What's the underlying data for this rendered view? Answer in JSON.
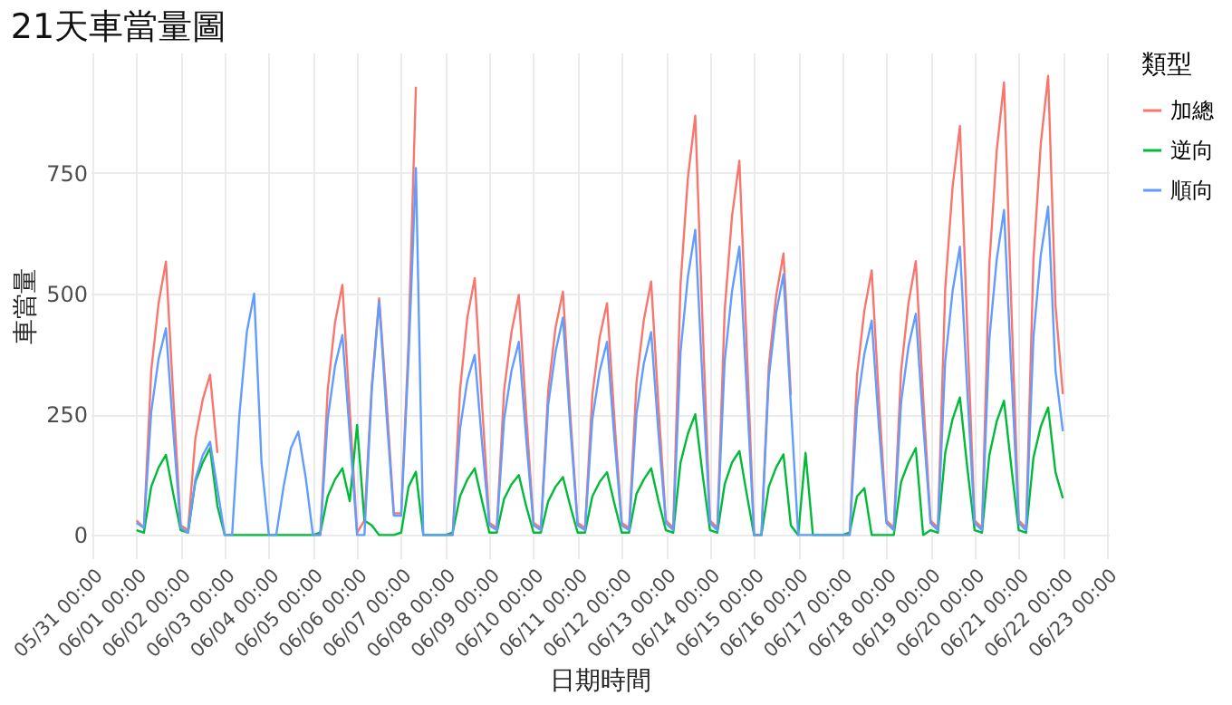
{
  "chart_data": {
    "type": "line",
    "title": "21天車當量圖",
    "xlabel": "日期時間",
    "ylabel": "車當量",
    "legend_title": "類型",
    "legend": "right",
    "grid": true,
    "x": [
      "--06-01T00:00",
      "--06-01T04:00",
      "--06-01T08:00",
      "--06-01T12:00",
      "--06-01T16:00",
      "--06-01T20:00",
      "--06-02T00:00",
      "--06-02T04:00",
      "--06-02T08:00",
      "--06-02T12:00",
      "--06-02T16:00",
      "--06-02T20:00",
      "--06-03T00:00",
      "--06-03T04:00",
      "--06-03T08:00",
      "--06-03T12:00",
      "--06-03T16:00",
      "--06-03T20:00",
      "--06-04T00:00",
      "--06-04T04:00",
      "--06-04T08:00",
      "--06-04T12:00",
      "--06-04T16:00",
      "--06-04T20:00",
      "--06-05T00:00",
      "--06-05T04:00",
      "--06-05T08:00",
      "--06-05T12:00",
      "--06-05T16:00",
      "--06-05T20:00",
      "--06-06T00:00",
      "--06-06T04:00",
      "--06-06T08:00",
      "--06-06T12:00",
      "--06-06T16:00",
      "--06-06T20:00",
      "--06-07T00:00",
      "--06-07T04:00",
      "--06-07T08:00",
      "--06-07T12:00",
      "--06-07T16:00",
      "--06-07T20:00",
      "--06-08T00:00",
      "--06-08T04:00",
      "--06-08T08:00",
      "--06-08T12:00",
      "--06-08T16:00",
      "--06-08T20:00",
      "--06-09T00:00",
      "--06-09T04:00",
      "--06-09T08:00",
      "--06-09T12:00",
      "--06-09T16:00",
      "--06-09T20:00",
      "--06-10T00:00",
      "--06-10T04:00",
      "--06-10T08:00",
      "--06-10T12:00",
      "--06-10T16:00",
      "--06-10T20:00",
      "--06-11T00:00",
      "--06-11T04:00",
      "--06-11T08:00",
      "--06-11T12:00",
      "--06-11T16:00",
      "--06-11T20:00",
      "--06-12T00:00",
      "--06-12T04:00",
      "--06-12T08:00",
      "--06-12T12:00",
      "--06-12T16:00",
      "--06-12T20:00",
      "--06-13T00:00",
      "--06-13T04:00",
      "--06-13T08:00",
      "--06-13T12:00",
      "--06-13T16:00",
      "--06-13T20:00",
      "--06-14T00:00",
      "--06-14T04:00",
      "--06-14T08:00",
      "--06-14T12:00",
      "--06-14T16:00",
      "--06-14T20:00",
      "--06-15T00:00",
      "--06-15T04:00",
      "--06-15T08:00",
      "--06-15T12:00",
      "--06-15T16:00",
      "--06-15T20:00",
      "--06-16T00:00",
      "--06-16T04:00",
      "--06-16T08:00",
      "--06-16T12:00",
      "--06-16T16:00",
      "--06-16T20:00",
      "--06-17T00:00",
      "--06-17T04:00",
      "--06-17T08:00",
      "--06-17T12:00",
      "--06-17T16:00",
      "--06-17T20:00",
      "--06-18T00:00",
      "--06-18T04:00",
      "--06-18T08:00",
      "--06-18T12:00",
      "--06-18T16:00",
      "--06-18T20:00",
      "--06-19T00:00",
      "--06-19T04:00",
      "--06-19T08:00",
      "--06-19T12:00",
      "--06-19T16:00",
      "--06-19T20:00",
      "--06-20T00:00",
      "--06-20T04:00",
      "--06-20T08:00",
      "--06-20T12:00",
      "--06-20T16:00",
      "--06-20T20:00",
      "--06-21T00:00",
      "--06-21T04:00",
      "--06-21T08:00",
      "--06-21T12:00",
      "--06-21T16:00",
      "--06-21T20:00",
      "--06-22T00:00"
    ],
    "series": [
      {
        "name": "加總",
        "color": "#f8766d",
        "values": [
          30,
          15,
          340,
          480,
          566,
          285,
          20,
          10,
          200,
          280,
          332,
          170,
          null,
          null,
          null,
          null,
          null,
          null,
          null,
          null,
          null,
          null,
          null,
          null,
          0,
          0,
          300,
          440,
          518,
          260,
          5,
          30,
          310,
          490,
          280,
          45,
          45,
          400,
          928,
          null,
          null,
          null,
          0,
          0,
          300,
          450,
          532,
          270,
          25,
          15,
          300,
          420,
          497,
          250,
          25,
          15,
          300,
          430,
          504,
          250,
          25,
          15,
          290,
          410,
          480,
          240,
          25,
          15,
          315,
          445,
          525,
          265,
          30,
          15,
          520,
          740,
          868,
          435,
          30,
          15,
          465,
          660,
          775,
          390,
          0,
          0,
          350,
          495,
          583,
          290,
          null,
          null,
          null,
          null,
          null,
          null,
          0,
          0,
          330,
          465,
          548,
          275,
          30,
          15,
          340,
          480,
          567,
          285,
          30,
          15,
          510,
          720,
          847,
          425,
          30,
          15,
          560,
          795,
          937,
          470,
          30,
          15,
          570,
          810,
          951,
          475,
          292
        ]
      },
      {
        "name": "逆向",
        "color": "#00ba38",
        "values": [
          10,
          5,
          100,
          140,
          166,
          85,
          10,
          5,
          110,
          150,
          180,
          60,
          0,
          0,
          0,
          0,
          0,
          0,
          0,
          0,
          0,
          0,
          0,
          0,
          0,
          5,
          80,
          115,
          138,
          70,
          228,
          30,
          20,
          0,
          0,
          0,
          5,
          100,
          131,
          0,
          0,
          0,
          0,
          5,
          80,
          115,
          138,
          70,
          5,
          5,
          75,
          105,
          124,
          60,
          5,
          5,
          70,
          100,
          120,
          60,
          5,
          5,
          80,
          110,
          130,
          65,
          5,
          5,
          85,
          115,
          138,
          70,
          10,
          5,
          150,
          210,
          250,
          125,
          10,
          5,
          105,
          150,
          174,
          85,
          0,
          0,
          100,
          140,
          167,
          20,
          0,
          170,
          0,
          0,
          0,
          0,
          0,
          5,
          80,
          97,
          0,
          0,
          0,
          0,
          110,
          150,
          180,
          0,
          10,
          5,
          170,
          240,
          285,
          140,
          10,
          5,
          165,
          235,
          278,
          140,
          10,
          5,
          160,
          225,
          264,
          130,
          76
        ]
      },
      {
        "name": "順向",
        "color": "#619cff",
        "values": [
          25,
          15,
          255,
          365,
          428,
          215,
          15,
          5,
          115,
          165,
          193,
          95,
          0,
          0,
          250,
          420,
          500,
          150,
          0,
          0,
          100,
          180,
          214,
          120,
          0,
          0,
          240,
          350,
          414,
          210,
          0,
          0,
          300,
          484,
          250,
          40,
          40,
          366,
          760,
          0,
          0,
          0,
          0,
          0,
          220,
          320,
          373,
          190,
          20,
          10,
          240,
          340,
          400,
          200,
          20,
          10,
          270,
          380,
          450,
          225,
          20,
          10,
          240,
          340,
          400,
          200,
          20,
          10,
          250,
          355,
          420,
          210,
          25,
          10,
          380,
          535,
          632,
          315,
          25,
          10,
          360,
          505,
          597,
          300,
          0,
          0,
          325,
          460,
          540,
          270,
          0,
          0,
          0,
          0,
          0,
          0,
          0,
          0,
          265,
          375,
          444,
          220,
          25,
          10,
          275,
          390,
          458,
          230,
          25,
          10,
          360,
          505,
          597,
          300,
          25,
          10,
          405,
          570,
          673,
          335,
          25,
          10,
          410,
          580,
          680,
          340,
          215
        ]
      }
    ],
    "xlim": [
      "--05-30T23:00",
      "--06-23T01:00"
    ],
    "xticks": [
      {
        "value": "--05-31T00:00",
        "label": "05/31 00:00"
      },
      {
        "value": "--06-01T00:00",
        "label": "06/01 00:00"
      },
      {
        "value": "--06-02T00:00",
        "label": "06/02 00:00"
      },
      {
        "value": "--06-03T00:00",
        "label": "06/03 00:00"
      },
      {
        "value": "--06-04T00:00",
        "label": "06/04 00:00"
      },
      {
        "value": "--06-05T00:00",
        "label": "06/05 00:00"
      },
      {
        "value": "--06-06T00:00",
        "label": "06/06 00:00"
      },
      {
        "value": "--06-07T00:00",
        "label": "06/07 00:00"
      },
      {
        "value": "--06-08T00:00",
        "label": "06/08 00:00"
      },
      {
        "value": "--06-09T00:00",
        "label": "06/09 00:00"
      },
      {
        "value": "--06-10T00:00",
        "label": "06/10 00:00"
      },
      {
        "value": "--06-11T00:00",
        "label": "06/11 00:00"
      },
      {
        "value": "--06-12T00:00",
        "label": "06/12 00:00"
      },
      {
        "value": "--06-13T00:00",
        "label": "06/13 00:00"
      },
      {
        "value": "--06-14T00:00",
        "label": "06/14 00:00"
      },
      {
        "value": "--06-15T00:00",
        "label": "06/15 00:00"
      },
      {
        "value": "--06-16T00:00",
        "label": "06/16 00:00"
      },
      {
        "value": "--06-17T00:00",
        "label": "06/17 00:00"
      },
      {
        "value": "--06-18T00:00",
        "label": "06/18 00:00"
      },
      {
        "value": "--06-19T00:00",
        "label": "06/19 00:00"
      },
      {
        "value": "--06-20T00:00",
        "label": "06/20 00:00"
      },
      {
        "value": "--06-21T00:00",
        "label": "06/21 00:00"
      },
      {
        "value": "--06-22T00:00",
        "label": "06/22 00:00"
      },
      {
        "value": "--06-23T00:00",
        "label": "06/23 00:00"
      }
    ],
    "ylim": [
      -48,
      999
    ],
    "yticks": [
      0,
      250,
      500,
      750
    ]
  }
}
